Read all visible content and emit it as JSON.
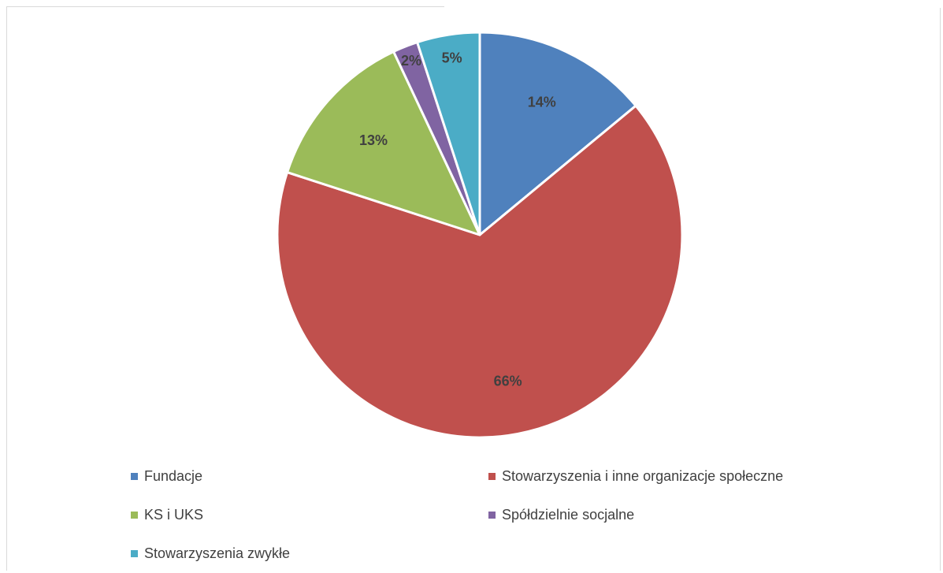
{
  "chart_data": {
    "type": "pie",
    "title": "",
    "categories": [
      "Fundacje",
      "Stowarzyszenia i inne organizacje społeczne",
      "KS i UKS",
      "Spółdzielnie socjalne",
      "Stowarzyszenia zwykłe"
    ],
    "values": [
      14,
      66,
      13,
      2,
      5
    ],
    "data_labels": [
      "14%",
      "66%",
      "13%",
      "2%",
      "5%"
    ],
    "colors": [
      "#4f81bd",
      "#c0504d",
      "#9bbb59",
      "#8064a2",
      "#4bacc6"
    ],
    "legend_position": "bottom"
  }
}
